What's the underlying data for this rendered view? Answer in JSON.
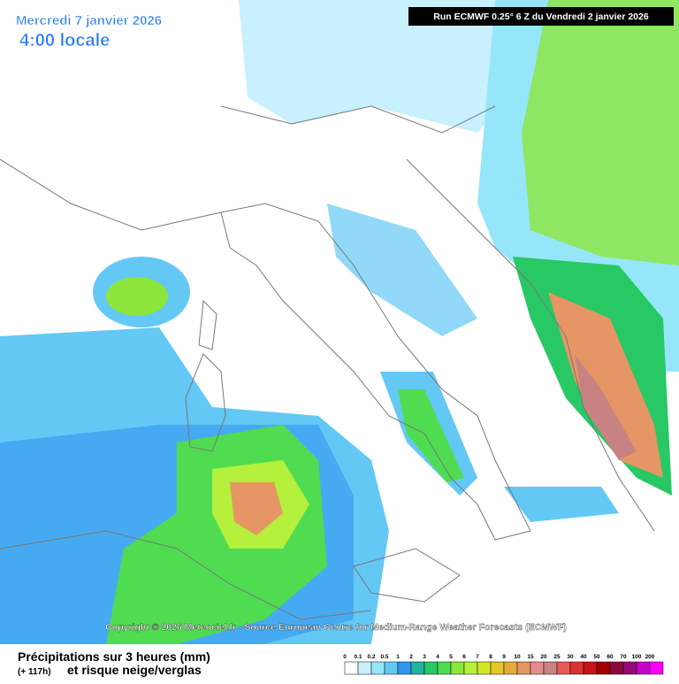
{
  "header": {
    "date": "Mercredi 7 janvier 2026",
    "time": "4:00 locale",
    "run": "Run ECMWF 0.25° 6 Z du Vendredi 2 janvier 2026"
  },
  "copyright": "Copyright © 2026 Meteociel.fr - Source European Centre for Medium-Range Weather Forecasts (ECMWF)",
  "legend": {
    "title": "Précipitations sur 3 heures (mm)",
    "lead": "(+ 117h)",
    "subtitle": "et risque neige/verglas",
    "items": [
      {
        "label": "0",
        "color": "#ffffff"
      },
      {
        "label": "0.1",
        "color": "#c8f0ff"
      },
      {
        "label": "0.2",
        "color": "#96e6fa"
      },
      {
        "label": "0.5",
        "color": "#64c8f5"
      },
      {
        "label": "1",
        "color": "#3296f0"
      },
      {
        "label": "2",
        "color": "#1eb4a0"
      },
      {
        "label": "3",
        "color": "#28c864"
      },
      {
        "label": "4",
        "color": "#50dc50"
      },
      {
        "label": "5",
        "color": "#8ce63c"
      },
      {
        "label": "6",
        "color": "#b4f03c"
      },
      {
        "label": "7",
        "color": "#d2e628"
      },
      {
        "label": "8",
        "color": "#e6c828"
      },
      {
        "label": "9",
        "color": "#e6aa3c"
      },
      {
        "label": "10",
        "color": "#e69664"
      },
      {
        "label": "15",
        "color": "#e68c8c"
      },
      {
        "label": "20",
        "color": "#c88282"
      },
      {
        "label": "25",
        "color": "#e65a5a"
      },
      {
        "label": "30",
        "color": "#dc3232"
      },
      {
        "label": "40",
        "color": "#c81414"
      },
      {
        "label": "50",
        "color": "#a00000"
      },
      {
        "label": "60",
        "color": "#8c0a3c"
      },
      {
        "label": "70",
        "color": "#960a78"
      },
      {
        "label": "100",
        "color": "#c800c8"
      },
      {
        "label": "200",
        "color": "#ff00ff"
      }
    ]
  }
}
